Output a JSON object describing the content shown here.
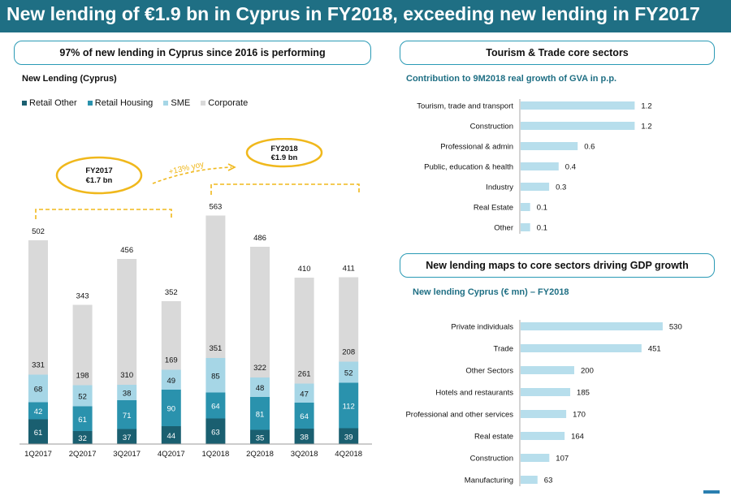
{
  "title": "New lending of €1.9 bn in Cyprus in FY2018, exceeding new lending in FY2017",
  "left_panel": {
    "title": "97% of new lending in Cyprus since 2016 is performing",
    "subtitle": "New Lending (Cyprus)",
    "fy2017_label_1": "FY2017",
    "fy2017_label_2": "€1.7 bn",
    "fy2018_label_1": "FY2018",
    "fy2018_label_2": "€1.9 bn",
    "yoy_label": "+13% yoy"
  },
  "right_top_panel": {
    "title": "Tourism & Trade core sectors",
    "subtitle": "Contribution to 9M2018 real growth of GVA in p.p."
  },
  "right_bottom_panel": {
    "title": "New lending maps to core sectors driving GDP growth",
    "subtitle": "New lending Cyprus (€ mn) – FY2018"
  },
  "colors": {
    "header": "#1f6f84",
    "retail_other": "#1a5f70",
    "retail_housing": "#2a92ad",
    "sme": "#a6d6e6",
    "corporate": "#d9d9d9",
    "accent_yellow": "#f0b81c",
    "hbar": "#b7deec"
  },
  "chart_data": [
    {
      "type": "bar",
      "stacked": true,
      "categories": [
        "1Q2017",
        "2Q2017",
        "3Q2017",
        "4Q2017",
        "1Q2018",
        "2Q2018",
        "3Q2018",
        "4Q2018"
      ],
      "series": [
        {
          "name": "Retail Other",
          "values": [
            61,
            32,
            37,
            44,
            63,
            35,
            38,
            39
          ]
        },
        {
          "name": "Retail Housing",
          "values": [
            42,
            61,
            71,
            90,
            64,
            81,
            64,
            112
          ]
        },
        {
          "name": "SME",
          "values": [
            68,
            52,
            38,
            49,
            85,
            48,
            47,
            52
          ]
        },
        {
          "name": "Corporate",
          "values": [
            331,
            198,
            310,
            169,
            351,
            322,
            261,
            208
          ]
        }
      ],
      "totals": [
        502,
        343,
        456,
        352,
        563,
        486,
        410,
        411
      ],
      "legend_position": "top-left"
    },
    {
      "type": "bar",
      "orientation": "horizontal",
      "categories": [
        "Tourism, trade and transport",
        "Construction",
        "Professional & admin",
        "Public, education & health",
        "Industry",
        "Real Estate",
        "Other"
      ],
      "values": [
        1.2,
        1.2,
        0.6,
        0.4,
        0.3,
        0.1,
        0.1
      ],
      "value_labels": [
        "1.2",
        "1.2",
        "0.6",
        "0.4",
        "0.3",
        "0.1",
        "0.1"
      ]
    },
    {
      "type": "bar",
      "orientation": "horizontal",
      "categories": [
        "Private individuals",
        "Trade",
        "Other Sectors",
        "Hotels and restaurants",
        "Professional and other services",
        "Real estate",
        "Construction",
        "Manufacturing"
      ],
      "values": [
        530,
        451,
        200,
        185,
        170,
        164,
        107,
        63
      ]
    }
  ]
}
